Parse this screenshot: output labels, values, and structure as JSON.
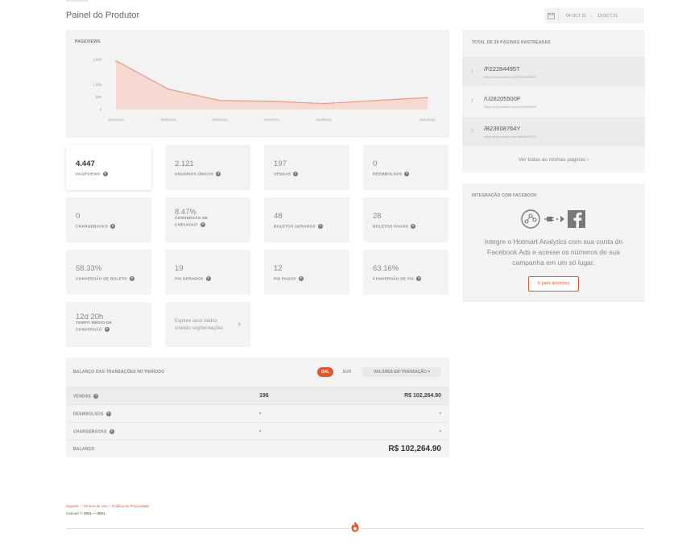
{
  "header": {
    "title": "Painel do Produtor",
    "date_start": "04 OCT 21",
    "date_separator": "-",
    "date_end": "10 OCT 21"
  },
  "pageviews_chart": {
    "label": "PAGEVIEWS"
  },
  "chart_data": {
    "type": "area",
    "title": "PAGEVIEWS",
    "x": [
      "10/04/2021",
      "10/05/2021",
      "10/06/2021",
      "10/07/2021",
      "10/08/2021",
      "10/10/2021"
    ],
    "x_tick_labels": [
      "10/04/2021",
      "10/05/2021",
      "10/06/2021",
      "10/07/2021",
      "10/08/2021",
      "10/10/2021"
    ],
    "y_ticks": [
      "2,000",
      "1,000",
      "500",
      "0"
    ],
    "series": [
      {
        "values": [
          1950,
          820,
          360,
          330,
          240,
          480
        ]
      }
    ],
    "ylim": [
      0,
      2000
    ],
    "grid": false,
    "colors": {
      "line": "#e89a86",
      "fill": "#f6d9d0"
    }
  },
  "metrics": [
    {
      "value": "4.447",
      "label": "PAGEVIEWS"
    },
    {
      "value": "2.121",
      "label": "USUÁRIOS ÚNICOS"
    },
    {
      "value": "197",
      "label": "VENDAS"
    },
    {
      "value": "0",
      "label": "REEMBOLSOS"
    },
    {
      "value": "0",
      "label": "CHARGEBACKS"
    },
    {
      "value": "8.47%",
      "label_line1": "CONVERSÃO DE",
      "label_line2": "CHECKOUT"
    },
    {
      "value": "48",
      "label": "BOLETOS GERADOS"
    },
    {
      "value": "28",
      "label": "BOLETOS PAGOS"
    },
    {
      "value": "58.33%",
      "label": "CONVERSÃO DE BOLETO"
    },
    {
      "value": "19",
      "label": "PIX GERADOS"
    },
    {
      "value": "12",
      "label": "PIX PAGOS"
    },
    {
      "value": "63.16%",
      "label": "CONVERSÃO DE PIX"
    },
    {
      "value": "12d 20h",
      "label_line1": "TEMPO MÉDIO DE",
      "label_line2": "CONVERSÃO"
    }
  ],
  "explore": {
    "line1": "Explore seus dados",
    "line2": "criando segmentações"
  },
  "balance": {
    "heading": "BALANÇO DAS TRANSAÇÕES NO PERÍODO",
    "currency_active": "BRL",
    "currency_other": "EUR",
    "mode": "VALORES EM TRANSAÇÃO",
    "rows": [
      {
        "name": "VENDAS",
        "count": "196",
        "total": "R$ 102,264.90"
      },
      {
        "name": "REEMBOLSOS",
        "count": "-",
        "total": "-"
      },
      {
        "name": "CHARGEBACKS",
        "count": "-",
        "total": "-"
      },
      {
        "name": "BALANÇO",
        "count": "",
        "total": "R$ 102,264.90"
      }
    ]
  },
  "pages": {
    "heading": "TOTAL DE 39 PÁGINAS RASTREADAS",
    "items": [
      {
        "index": "1",
        "code": "/F22284495T",
        "url": "https://pay.hotmart.com/F22284495T"
      },
      {
        "index": "2",
        "code": "/U28205500F",
        "url": "https://pay.hotmart.com/U28205500F"
      },
      {
        "index": "3",
        "code": "/B23608764Y",
        "url": "https://pay.hotmart.com/B23608764Y"
      }
    ],
    "see_all": "Ver todas as minhas páginas"
  },
  "facebook": {
    "heading": "INTEGRAÇÃO COM FACEBOOK",
    "text": "Integre o Hotmart Analytics com sua conta do Facebook Ads e acesse os números de sua campanha em um só lugar.",
    "button": "Ir para anúncios"
  },
  "footer": {
    "link_support": "Suporte",
    "link_terms": "Termos de Uso",
    "link_privacy": "Política de Privacidade",
    "dot": "•",
    "copyright_prefix": "Hotmart ©",
    "copyright_years": "2011 — 2021"
  },
  "colors": {
    "accent": "#e8532b",
    "card_bg": "#f3f3f3"
  }
}
